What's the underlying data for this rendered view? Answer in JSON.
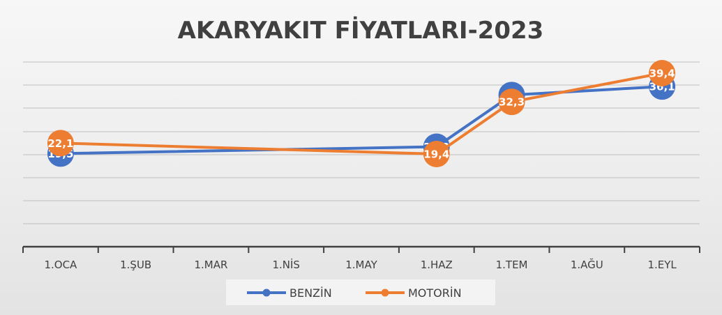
{
  "chart_data": {
    "type": "line",
    "title": "AKARYAKIT FİYATLARI-2023",
    "xlabel": "",
    "ylabel": "",
    "categories": [
      "1.OCA",
      "1.ŞUB",
      "1.MAR",
      "1.NİS",
      "1.MAY",
      "1.HAZ",
      "1.TEM",
      "1.AĞU",
      "1.EYL"
    ],
    "x": [
      "1.OCA",
      "1.HAZ",
      "1.TEM",
      "1.EYL"
    ],
    "series": [
      {
        "name": "BENZİN",
        "color": "#4472c4",
        "values": [
          19.5,
          21.2,
          34,
          36.1
        ],
        "labels": [
          "19,5",
          "21,2",
          "34",
          "36,1"
        ]
      },
      {
        "name": "MOTORİN",
        "color": "#ed7d31",
        "values": [
          22.1,
          19.4,
          32.3,
          39.4
        ],
        "labels": [
          "22,1",
          "19,4",
          "32,3",
          "39,4"
        ]
      }
    ],
    "legend": "bottom",
    "grid": true,
    "y_axis_labels": false
  }
}
